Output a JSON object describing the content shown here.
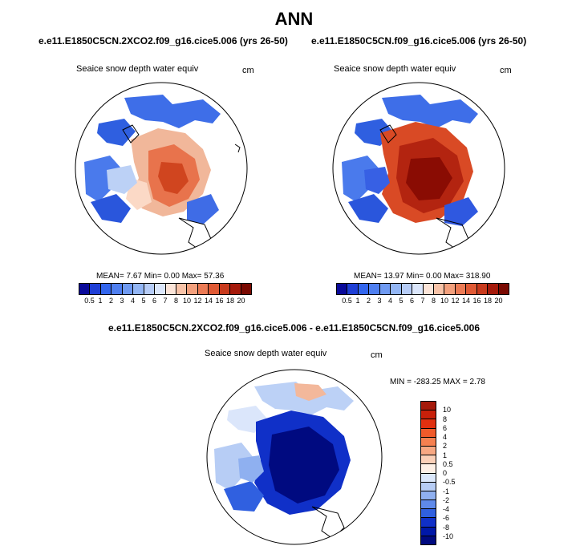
{
  "title": "ANN",
  "panels": [
    {
      "run": "e.e11.E1850C5CN.2XCO2.f09_g16.cice5.006 (yrs 26-50)",
      "variable": "Seaice snow depth water equiv",
      "units": "cm",
      "stats": "MEAN=   7.67  Min=   0.00  Max=  57.36"
    },
    {
      "run": "e.e11.E1850C5CN.f09_g16.cice5.006 (yrs 26-50)",
      "variable": "Seaice snow depth water equiv",
      "units": "cm",
      "stats": "MEAN=  13.97  Min=   0.00  Max= 318.90"
    }
  ],
  "diff_panel": {
    "title": "e.e11.E1850C5CN.2XCO2.f09_g16.cice5.006 - e.e11.E1850C5CN.f09_g16.cice5.006",
    "variable": "Seaice snow depth water equiv",
    "units": "cm",
    "stats": "MIN = -283.25  MAX =   2.78"
  },
  "chart_data": [
    {
      "type": "heatmap",
      "projection": "north polar stereographic",
      "title": "e.e11.E1850C5CN.2XCO2.f09_g16.cice5.006 (yrs 26-50)",
      "variable": "Seaice snow depth water equiv",
      "units": "cm",
      "mean": 7.67,
      "min": 0.0,
      "max": 57.36,
      "colorbar_levels": [
        0.5,
        1,
        2,
        3,
        4,
        5,
        6,
        7,
        8,
        10,
        12,
        14,
        16,
        18,
        20
      ],
      "colorbar_colors": [
        "#0a0a9a",
        "#1f3fd6",
        "#3366ee",
        "#4f7ff0",
        "#6f9af2",
        "#93b6f5",
        "#b6ccf7",
        "#dbe6fb",
        "#fbe4d8",
        "#f8c3a8",
        "#f3a07d",
        "#ec7b55",
        "#e05a35",
        "#c83a1d",
        "#a51a0b",
        "#7a0a02"
      ],
      "colorbar_position": "bottom"
    },
    {
      "type": "heatmap",
      "projection": "north polar stereographic",
      "title": "e.e11.E1850C5CN.f09_g16.cice5.006 (yrs 26-50)",
      "variable": "Seaice snow depth water equiv",
      "units": "cm",
      "mean": 13.97,
      "min": 0.0,
      "max": 318.9,
      "colorbar_levels": [
        0.5,
        1,
        2,
        3,
        4,
        5,
        6,
        7,
        8,
        10,
        12,
        14,
        16,
        18,
        20
      ],
      "colorbar_colors": [
        "#0a0a9a",
        "#1f3fd6",
        "#3366ee",
        "#4f7ff0",
        "#6f9af2",
        "#93b6f5",
        "#b6ccf7",
        "#dbe6fb",
        "#fbe4d8",
        "#f8c3a8",
        "#f3a07d",
        "#ec7b55",
        "#e05a35",
        "#c83a1d",
        "#a51a0b",
        "#7a0a02"
      ],
      "colorbar_position": "bottom"
    },
    {
      "type": "heatmap",
      "projection": "north polar stereographic",
      "title": "e.e11.E1850C5CN.2XCO2.f09_g16.cice5.006 - e.e11.E1850C5CN.f09_g16.cice5.006",
      "variable": "Seaice snow depth water equiv",
      "units": "cm",
      "min": -283.25,
      "max": 2.78,
      "colorbar_levels": [
        10,
        8,
        6,
        4,
        2,
        1,
        0.5,
        0,
        -0.5,
        -1,
        -2,
        -4,
        -6,
        -8,
        -10
      ],
      "colorbar_colors": [
        "#a51a0b",
        "#c8200a",
        "#e03010",
        "#f05a2a",
        "#f58050",
        "#f7a883",
        "#fad0b8",
        "#fdf0e6",
        "#dbe8fb",
        "#b7cdf5",
        "#8fb0f0",
        "#5f8aea",
        "#3060e0",
        "#1030c8",
        "#0018a8",
        "#000a80"
      ],
      "colorbar_position": "right"
    }
  ]
}
